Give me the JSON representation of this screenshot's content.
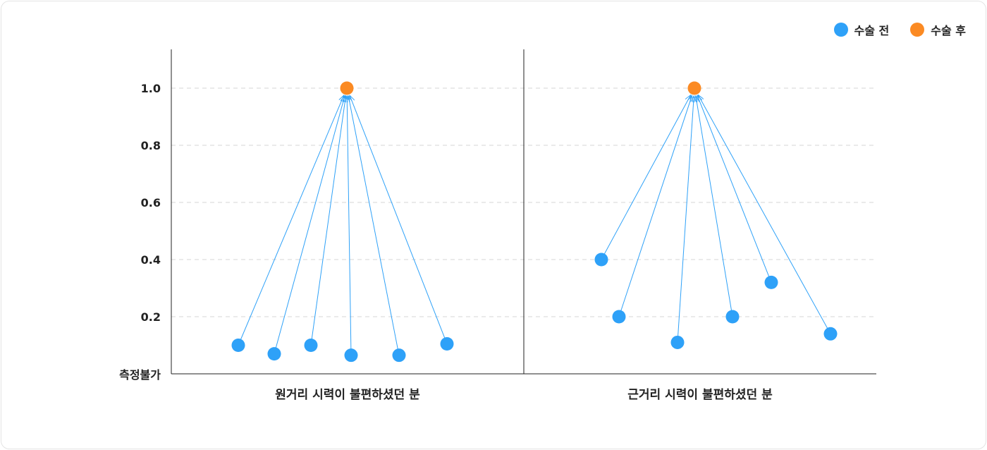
{
  "legend": [
    {
      "label": "수술 전",
      "color": "#2ea1f8"
    },
    {
      "label": "수술 후",
      "color": "#fb8a23"
    }
  ],
  "chart_data": {
    "type": "scatter",
    "ylim": [
      0,
      1.1
    ],
    "y_ticks": [
      {
        "value": 0.2,
        "label": "0.2"
      },
      {
        "value": 0.4,
        "label": "0.4"
      },
      {
        "value": 0.6,
        "label": "0.6"
      },
      {
        "value": 0.8,
        "label": "0.8"
      },
      {
        "value": 1.0,
        "label": "1.0"
      }
    ],
    "y_zero_label": "측정불가",
    "grid": true,
    "legend_position": "top-right",
    "panels": [
      {
        "xlabel": "원거리 시력이 불편하셨던 분",
        "before": [
          0.1,
          0.07,
          0.1,
          0.065,
          0.065,
          0.105
        ],
        "after": 1.0
      },
      {
        "xlabel": "근거리 시력이 불편하셨던 분",
        "before": [
          0.4,
          0.2,
          0.11,
          0.2,
          0.32,
          0.14
        ],
        "after": 1.0
      }
    ]
  }
}
